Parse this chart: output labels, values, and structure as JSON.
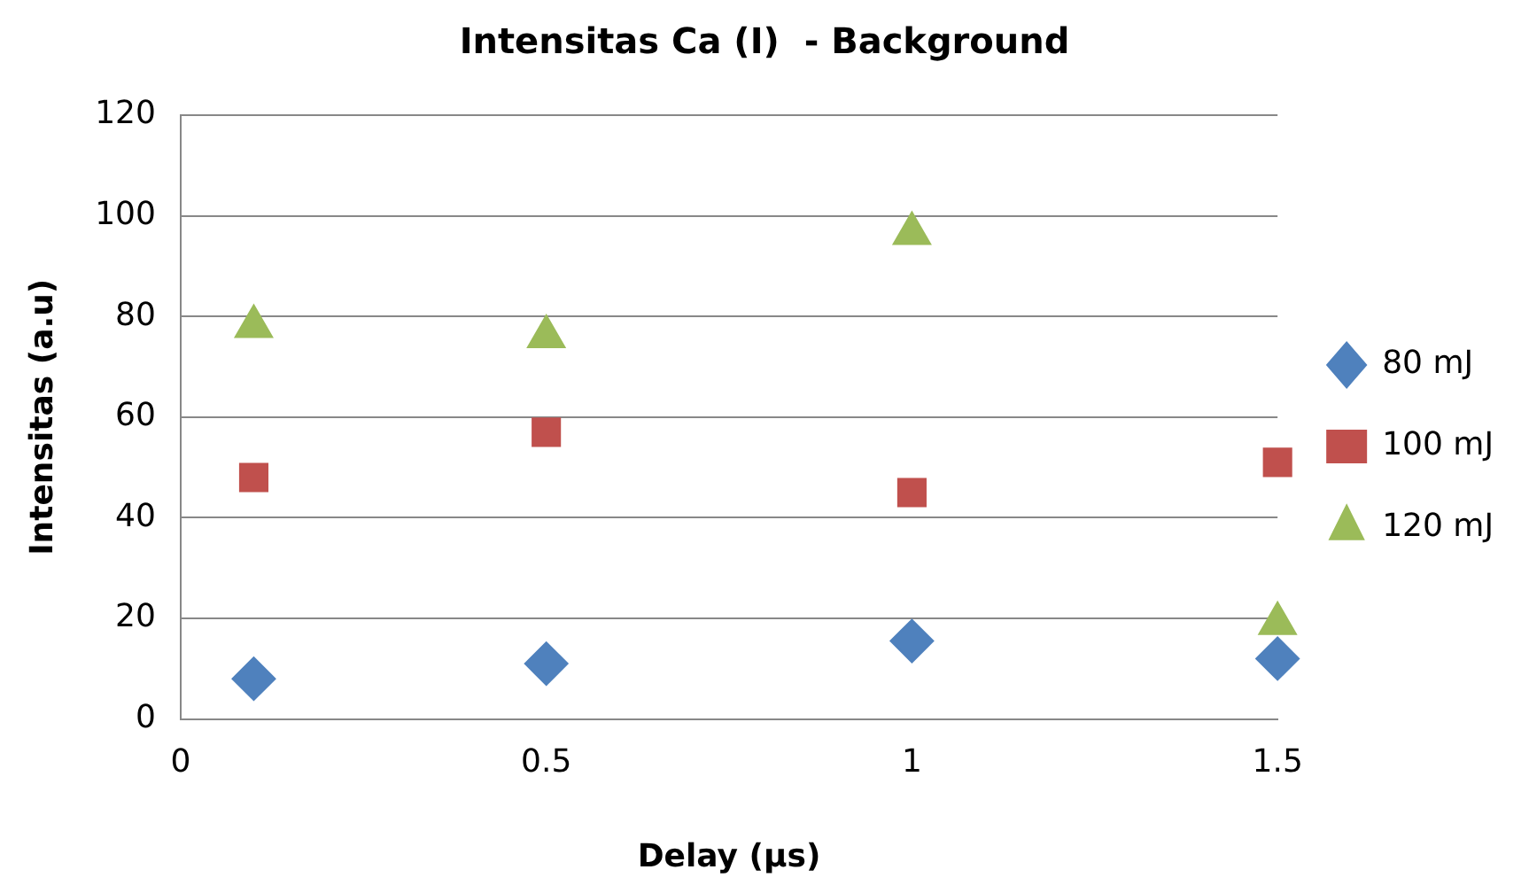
{
  "chart_data": {
    "type": "scatter",
    "title": "Intensitas Ca (I)  - Background",
    "xlabel": "Delay (µs)",
    "ylabel": "Intensitas (a.u)",
    "x": [
      0.1,
      0.5,
      1,
      1.5
    ],
    "series": [
      {
        "name": "80 mJ",
        "color": "#4f81bd",
        "marker": "diamond",
        "values": [
          8,
          11,
          15.5,
          12
        ]
      },
      {
        "name": "100 mJ",
        "color": "#c0504d",
        "marker": "square",
        "values": [
          48,
          57,
          45,
          51
        ]
      },
      {
        "name": "120 mJ",
        "color": "#9bbb59",
        "marker": "triangle",
        "values": [
          78,
          76,
          96.5,
          19
        ]
      }
    ],
    "xlim": [
      0,
      1.5
    ],
    "xticks": [
      0,
      0.5,
      1,
      1.5
    ],
    "ylim": [
      0,
      120
    ],
    "yticks": [
      0,
      20,
      40,
      60,
      80,
      100,
      120
    ],
    "grid": "y",
    "legend": "right"
  }
}
